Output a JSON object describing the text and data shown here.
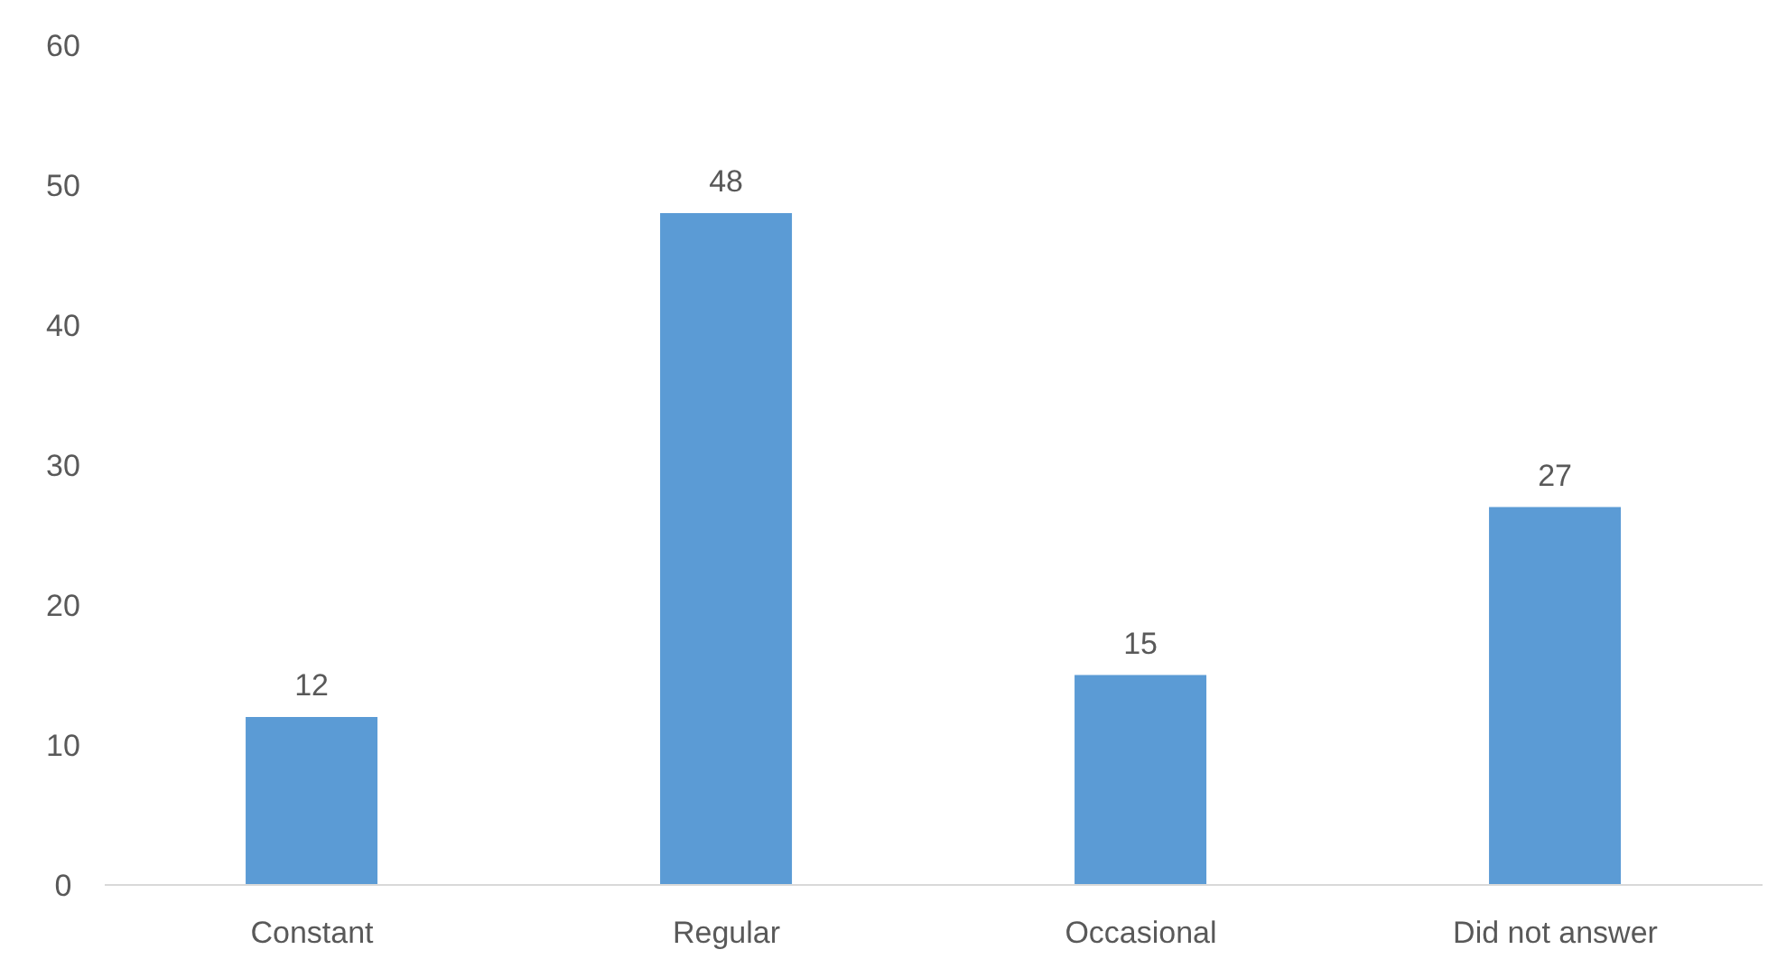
{
  "chart_data": {
    "type": "bar",
    "categories": [
      "Constant",
      "Regular",
      "Occasional",
      "Did not answer"
    ],
    "values": [
      12,
      48,
      15,
      27
    ],
    "color": "#5b9bd5",
    "ylim": [
      0,
      60
    ],
    "yticks": [
      0,
      10,
      20,
      30,
      40,
      50,
      60
    ],
    "grid": false,
    "data_labels": true
  }
}
